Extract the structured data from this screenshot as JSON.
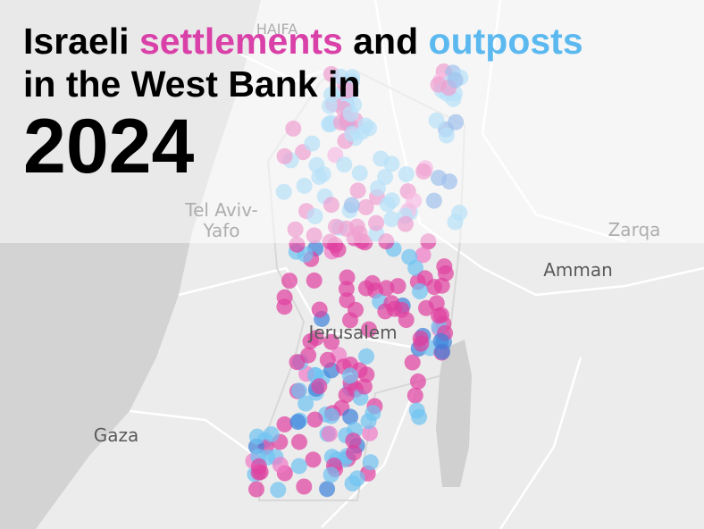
{
  "title": {
    "word1": "Israeli",
    "settlements": "settlements",
    "word2": "and",
    "outposts": "outposts",
    "line2": "in the West Bank in",
    "year": "2024"
  },
  "places": {
    "haifa": "HAIFA",
    "tel_aviv_1": "Tel Aviv-",
    "tel_aviv_2": "Yafo",
    "zarqa": "Zarqa",
    "amman": "Amman",
    "jerusalem": "Jerusalem",
    "gaza": "Gaza"
  }
}
